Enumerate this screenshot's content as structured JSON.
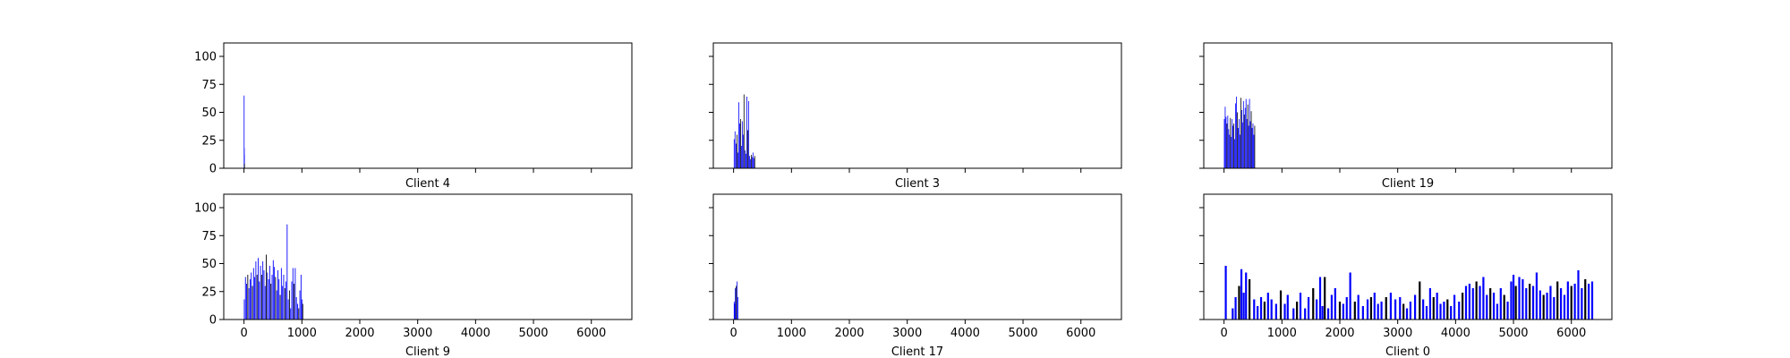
{
  "chart_data": [
    {
      "type": "bar",
      "title": "",
      "xlabel": "Client 4",
      "ylabel": "",
      "xlim": [
        -350,
        6700
      ],
      "ylim": [
        0,
        112
      ],
      "x_ticks": [
        0,
        1000,
        2000,
        3000,
        4000,
        5000,
        6000
      ],
      "x_tick_labels_visible": false,
      "y_ticks": [
        0,
        25,
        50,
        75,
        100
      ],
      "y_tick_labels_visible": true,
      "bar_color": "#0000ff",
      "bar_peaks": [
        [
          2,
          65
        ],
        [
          4,
          18
        ],
        [
          6,
          12
        ],
        [
          8,
          4
        ]
      ]
    },
    {
      "type": "bar",
      "title": "",
      "xlabel": "Client 3",
      "ylabel": "",
      "xlim": [
        -350,
        6700
      ],
      "ylim": [
        0,
        112
      ],
      "x_ticks": [
        0,
        1000,
        2000,
        3000,
        4000,
        5000,
        6000
      ],
      "x_tick_labels_visible": false,
      "y_ticks": [
        0,
        25,
        50,
        75,
        100
      ],
      "y_tick_labels_visible": false,
      "bar_color": "#0000ff",
      "bar_peaks": [
        [
          10,
          26
        ],
        [
          25,
          33
        ],
        [
          45,
          22
        ],
        [
          60,
          30
        ],
        [
          75,
          14
        ],
        [
          90,
          59
        ],
        [
          105,
          40
        ],
        [
          120,
          44
        ],
        [
          135,
          20
        ],
        [
          150,
          42
        ],
        [
          165,
          30
        ],
        [
          180,
          66
        ],
        [
          200,
          16
        ],
        [
          215,
          13
        ],
        [
          230,
          64
        ],
        [
          245,
          34
        ],
        [
          260,
          60
        ],
        [
          275,
          11
        ],
        [
          290,
          8
        ],
        [
          305,
          12
        ],
        [
          320,
          10
        ],
        [
          335,
          14
        ],
        [
          350,
          9
        ],
        [
          365,
          11
        ]
      ]
    },
    {
      "type": "bar",
      "title": "",
      "xlabel": "Client 19",
      "ylabel": "",
      "xlim": [
        -350,
        6700
      ],
      "ylim": [
        0,
        112
      ],
      "x_ticks": [
        0,
        1000,
        2000,
        3000,
        4000,
        5000,
        6000
      ],
      "x_tick_labels_visible": false,
      "y_ticks": [
        0,
        25,
        50,
        75,
        100
      ],
      "y_tick_labels_visible": false,
      "bar_color": "#0000ff",
      "bar_peaks": [
        [
          5,
          44
        ],
        [
          20,
          55
        ],
        [
          35,
          46
        ],
        [
          50,
          40
        ],
        [
          65,
          47
        ],
        [
          80,
          35
        ],
        [
          95,
          30
        ],
        [
          110,
          45
        ],
        [
          125,
          28
        ],
        [
          140,
          44
        ],
        [
          155,
          38
        ],
        [
          170,
          40
        ],
        [
          185,
          26
        ],
        [
          200,
          58
        ],
        [
          215,
          64
        ],
        [
          230,
          50
        ],
        [
          245,
          36
        ],
        [
          260,
          44
        ],
        [
          275,
          30
        ],
        [
          290,
          63
        ],
        [
          305,
          52
        ],
        [
          320,
          41
        ],
        [
          335,
          60
        ],
        [
          350,
          48
        ],
        [
          365,
          54
        ],
        [
          380,
          62
        ],
        [
          395,
          44
        ],
        [
          410,
          57
        ],
        [
          425,
          38
        ],
        [
          440,
          62
        ],
        [
          455,
          42
        ],
        [
          470,
          51
        ],
        [
          485,
          36
        ],
        [
          500,
          40
        ],
        [
          515,
          30
        ],
        [
          530,
          38
        ]
      ]
    },
    {
      "type": "bar",
      "title": "",
      "xlabel": "Client 9",
      "ylabel": "",
      "xlim": [
        -350,
        6700
      ],
      "ylim": [
        0,
        112
      ],
      "x_ticks": [
        0,
        1000,
        2000,
        3000,
        4000,
        5000,
        6000
      ],
      "x_tick_labels_visible": true,
      "y_ticks": [
        0,
        25,
        50,
        75,
        100
      ],
      "y_tick_labels_visible": true,
      "bar_color": "#0000ff",
      "bar_peaks": [
        [
          5,
          18
        ],
        [
          25,
          38
        ],
        [
          45,
          32
        ],
        [
          65,
          40
        ],
        [
          85,
          28
        ],
        [
          105,
          36
        ],
        [
          125,
          42
        ],
        [
          145,
          30
        ],
        [
          165,
          46
        ],
        [
          185,
          38
        ],
        [
          205,
          52
        ],
        [
          225,
          40
        ],
        [
          245,
          55
        ],
        [
          265,
          34
        ],
        [
          285,
          48
        ],
        [
          305,
          40
        ],
        [
          325,
          52
        ],
        [
          345,
          44
        ],
        [
          365,
          30
        ],
        [
          385,
          58
        ],
        [
          405,
          42
        ],
        [
          425,
          36
        ],
        [
          445,
          48
        ],
        [
          465,
          32
        ],
        [
          485,
          40
        ],
        [
          505,
          53
        ],
        [
          525,
          47
        ],
        [
          545,
          38
        ],
        [
          565,
          26
        ],
        [
          585,
          44
        ],
        [
          605,
          36
        ],
        [
          625,
          22
        ],
        [
          645,
          46
        ],
        [
          665,
          30
        ],
        [
          685,
          40
        ],
        [
          705,
          28
        ],
        [
          725,
          34
        ],
        [
          745,
          85
        ],
        [
          765,
          18
        ],
        [
          785,
          26
        ],
        [
          805,
          10
        ],
        [
          825,
          34
        ],
        [
          845,
          46
        ],
        [
          865,
          32
        ],
        [
          885,
          46
        ],
        [
          905,
          20
        ],
        [
          925,
          14
        ],
        [
          945,
          10
        ],
        [
          965,
          26
        ],
        [
          985,
          40
        ],
        [
          1000,
          18
        ],
        [
          1015,
          14
        ]
      ]
    },
    {
      "type": "bar",
      "title": "",
      "xlabel": "Client 17",
      "ylabel": "",
      "xlim": [
        -350,
        6700
      ],
      "ylim": [
        0,
        112
      ],
      "x_ticks": [
        0,
        1000,
        2000,
        3000,
        4000,
        5000,
        6000
      ],
      "x_tick_labels_visible": true,
      "y_ticks": [
        0,
        25,
        50,
        75,
        100
      ],
      "y_tick_labels_visible": false,
      "bar_color": "#0000ff",
      "bar_peaks": [
        [
          10,
          16
        ],
        [
          20,
          14
        ],
        [
          30,
          28
        ],
        [
          45,
          30
        ],
        [
          60,
          34
        ],
        [
          75,
          20
        ]
      ]
    },
    {
      "type": "bar",
      "title": "",
      "xlabel": "Client 0",
      "ylabel": "",
      "xlim": [
        -350,
        6700
      ],
      "ylim": [
        0,
        112
      ],
      "x_ticks": [
        0,
        1000,
        2000,
        3000,
        4000,
        5000,
        6000
      ],
      "x_tick_labels_visible": true,
      "y_ticks": [
        0,
        25,
        50,
        75,
        100
      ],
      "y_tick_labels_visible": false,
      "bar_color": "#0000ff",
      "bar_peaks": [
        [
          30,
          48
        ],
        [
          150,
          10
        ],
        [
          200,
          20
        ],
        [
          260,
          30
        ],
        [
          300,
          45
        ],
        [
          340,
          24
        ],
        [
          380,
          42
        ],
        [
          440,
          36
        ],
        [
          520,
          18
        ],
        [
          580,
          12
        ],
        [
          640,
          20
        ],
        [
          700,
          16
        ],
        [
          760,
          24
        ],
        [
          820,
          18
        ],
        [
          900,
          14
        ],
        [
          980,
          26
        ],
        [
          1050,
          14
        ],
        [
          1100,
          22
        ],
        [
          1200,
          10
        ],
        [
          1260,
          16
        ],
        [
          1320,
          24
        ],
        [
          1400,
          10
        ],
        [
          1460,
          20
        ],
        [
          1540,
          28
        ],
        [
          1600,
          18
        ],
        [
          1660,
          38
        ],
        [
          1700,
          12
        ],
        [
          1740,
          38
        ],
        [
          1800,
          10
        ],
        [
          1860,
          22
        ],
        [
          1920,
          28
        ],
        [
          2000,
          16
        ],
        [
          2060,
          14
        ],
        [
          2120,
          20
        ],
        [
          2180,
          42
        ],
        [
          2260,
          16
        ],
        [
          2320,
          22
        ],
        [
          2400,
          12
        ],
        [
          2480,
          18
        ],
        [
          2540,
          20
        ],
        [
          2600,
          24
        ],
        [
          2660,
          14
        ],
        [
          2720,
          16
        ],
        [
          2800,
          20
        ],
        [
          2880,
          24
        ],
        [
          2960,
          18
        ],
        [
          3040,
          20
        ],
        [
          3100,
          14
        ],
        [
          3160,
          10
        ],
        [
          3220,
          16
        ],
        [
          3300,
          22
        ],
        [
          3380,
          34
        ],
        [
          3440,
          18
        ],
        [
          3500,
          12
        ],
        [
          3560,
          28
        ],
        [
          3620,
          20
        ],
        [
          3680,
          24
        ],
        [
          3740,
          14
        ],
        [
          3800,
          16
        ],
        [
          3860,
          18
        ],
        [
          3920,
          12
        ],
        [
          3980,
          22
        ],
        [
          4060,
          16
        ],
        [
          4120,
          24
        ],
        [
          4180,
          30
        ],
        [
          4240,
          32
        ],
        [
          4300,
          28
        ],
        [
          4360,
          34
        ],
        [
          4420,
          30
        ],
        [
          4480,
          38
        ],
        [
          4540,
          22
        ],
        [
          4600,
          28
        ],
        [
          4660,
          24
        ],
        [
          4720,
          14
        ],
        [
          4780,
          28
        ],
        [
          4840,
          22
        ],
        [
          4900,
          16
        ],
        [
          4960,
          34
        ],
        [
          5000,
          40
        ],
        [
          5040,
          30
        ],
        [
          5100,
          38
        ],
        [
          5160,
          36
        ],
        [
          5220,
          28
        ],
        [
          5280,
          32
        ],
        [
          5340,
          30
        ],
        [
          5400,
          42
        ],
        [
          5460,
          26
        ],
        [
          5520,
          22
        ],
        [
          5580,
          24
        ],
        [
          5640,
          30
        ],
        [
          5700,
          20
        ],
        [
          5760,
          34
        ],
        [
          5820,
          28
        ],
        [
          5880,
          22
        ],
        [
          5940,
          34
        ],
        [
          6000,
          30
        ],
        [
          6060,
          32
        ],
        [
          6120,
          44
        ],
        [
          6180,
          28
        ],
        [
          6240,
          36
        ],
        [
          6300,
          32
        ],
        [
          6360,
          34
        ]
      ]
    }
  ]
}
